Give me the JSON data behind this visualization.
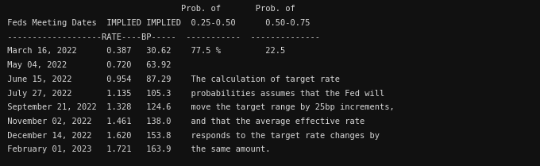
{
  "bg_color": "#111111",
  "text_color": "#d8d8d8",
  "font_size": 7.5,
  "figwidth": 6.8,
  "figheight": 2.09,
  "dpi": 100,
  "lines": [
    "                                    Prob. of       Prob. of",
    " Feds Meeting Dates  IMPLIED IMPLIED  0.25-0.50      0.50-0.75",
    " -------------------RATE----BP-----  -----------  --------------",
    " March 16, 2022      0.387   30.62    77.5 %         22.5",
    " May 04, 2022        0.720   63.92",
    " June 15, 2022       0.954   87.29    The calculation of target rate",
    " July 27, 2022       1.135   105.3    probabilities assumes that the Fed will",
    " September 21, 2022  1.328   124.6    move the target range by 25bp increments,",
    " November 02, 2022   1.461   138.0    and that the average effective rate",
    " December 14, 2022   1.620   153.8    responds to the target rate changes by",
    " February 01, 2023   1.721   163.9    the same amount."
  ]
}
